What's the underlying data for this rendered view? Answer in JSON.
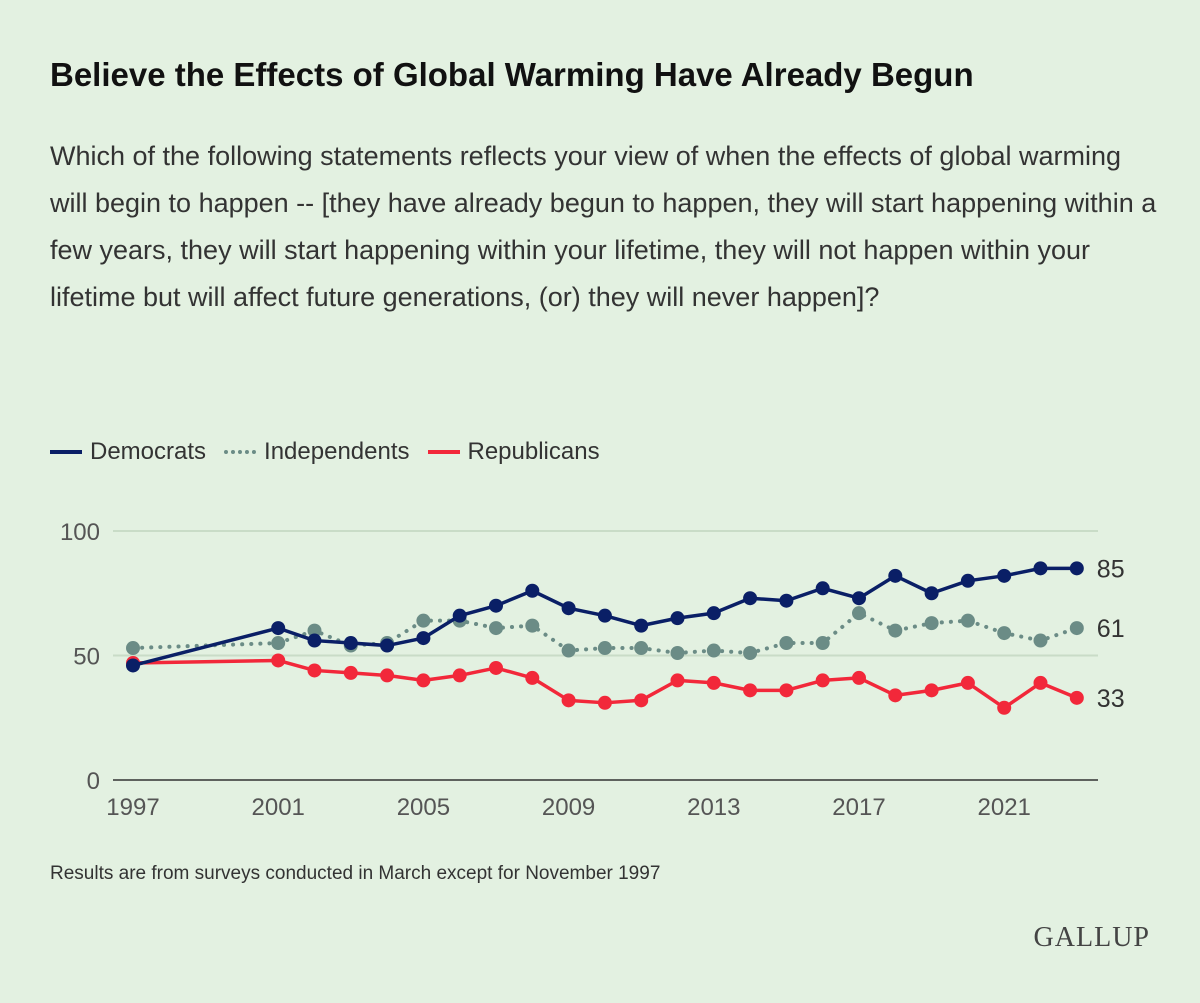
{
  "title": "Believe the Effects of Global Warming Have Already Begun",
  "subtitle": "Which of the following statements reflects your view of when the effects of global warming will begin to happen -- [they have already begun to happen, they will start happening within a few years, they will start happening within your lifetime, they will not happen within your lifetime but will affect future generations, (or) they will never happen]?",
  "note": "Results are from surveys conducted in March except for November 1997",
  "logo": "GALLUP",
  "chart_data": {
    "type": "line",
    "x": [
      1997,
      2001,
      2002,
      2003,
      2004,
      2005,
      2006,
      2007,
      2008,
      2009,
      2010,
      2011,
      2012,
      2013,
      2014,
      2015,
      2016,
      2017,
      2018,
      2019,
      2020,
      2021,
      2022,
      2023
    ],
    "xticks": [
      "1997",
      "2001",
      "2005",
      "2009",
      "2013",
      "2017",
      "2021"
    ],
    "yticks": [
      "0",
      "50",
      "100"
    ],
    "ylim": [
      0,
      100
    ],
    "grid": true,
    "legend": "top-left",
    "series": [
      {
        "name": "Democrats",
        "color": "#0a1f66",
        "style": "solid",
        "values": [
          46,
          61,
          56,
          55,
          54,
          57,
          66,
          70,
          76,
          69,
          66,
          62,
          65,
          67,
          73,
          72,
          77,
          73,
          82,
          75,
          80,
          82,
          85,
          85
        ],
        "end_label": "85"
      },
      {
        "name": "Independents",
        "color": "#6b8c86",
        "style": "dotted",
        "values": [
          53,
          55,
          60,
          54,
          55,
          64,
          64,
          61,
          62,
          52,
          53,
          53,
          51,
          52,
          51,
          55,
          55,
          67,
          60,
          63,
          64,
          59,
          56,
          61
        ],
        "end_label": "61"
      },
      {
        "name": "Republicans",
        "color": "#f2283a",
        "style": "solid",
        "values": [
          47,
          48,
          44,
          43,
          42,
          40,
          42,
          45,
          41,
          32,
          31,
          32,
          40,
          39,
          36,
          36,
          40,
          41,
          34,
          36,
          39,
          29,
          39,
          33
        ],
        "end_label": "33"
      }
    ]
  }
}
